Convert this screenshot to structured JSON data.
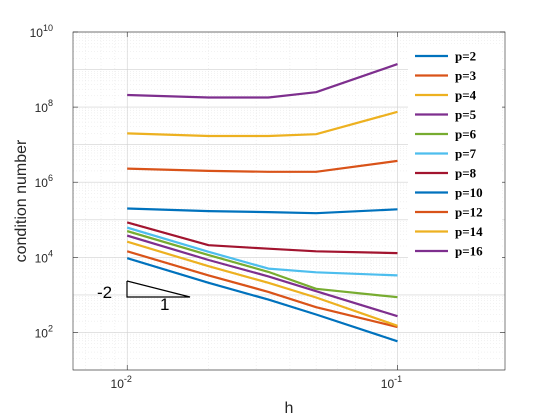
{
  "chart_data": {
    "type": "line",
    "xlabel": "h",
    "ylabel": "condition number",
    "xscale": "log",
    "yscale": "log",
    "xlim": [
      0.0063,
      0.25
    ],
    "ylim": [
      10,
      10000000000
    ],
    "grid": true,
    "legend_position": "top-right",
    "x_ticks": [
      {
        "value": 0.01,
        "base": "10",
        "exp": "-2"
      },
      {
        "value": 0.1,
        "base": "10",
        "exp": "-1"
      }
    ],
    "y_ticks": [
      {
        "value": 100,
        "base": "10",
        "exp": "2"
      },
      {
        "value": 10000,
        "base": "10",
        "exp": "4"
      },
      {
        "value": 1000000,
        "base": "10",
        "exp": "6"
      },
      {
        "value": 100000000,
        "base": "10",
        "exp": "8"
      },
      {
        "value": 10000000000,
        "base": "10",
        "exp": "10"
      }
    ],
    "x": [
      0.01,
      0.02,
      0.0333,
      0.05,
      0.1
    ],
    "series": [
      {
        "name": "p=2",
        "color": "#0072BD",
        "values": [
          9500,
          2100,
          750,
          300,
          58
        ]
      },
      {
        "name": "p=3",
        "color": "#D95319",
        "values": [
          14500,
          3300,
          1200,
          470,
          140
        ]
      },
      {
        "name": "p=4",
        "color": "#EDB120",
        "values": [
          26000,
          5800,
          2100,
          850,
          150
        ]
      },
      {
        "name": "p=5",
        "color": "#7E2F8E",
        "values": [
          38000,
          8500,
          3100,
          1250,
          270
        ]
      },
      {
        "name": "p=6",
        "color": "#77AC30",
        "values": [
          50000,
          11500,
          4100,
          1450,
          870
        ]
      },
      {
        "name": "p=7",
        "color": "#4DBEEE",
        "values": [
          62000,
          14000,
          5000,
          4000,
          3300
        ]
      },
      {
        "name": "p=8",
        "color": "#A2142F",
        "values": [
          85000,
          21000,
          17000,
          14500,
          13000
        ]
      },
      {
        "name": "p=10",
        "color": "#0072BD",
        "values": [
          200000,
          170000,
          160000,
          150000,
          190000
        ]
      },
      {
        "name": "p=12",
        "color": "#D95319",
        "values": [
          2300000,
          2000000,
          1900000,
          1900000,
          3700000
        ]
      },
      {
        "name": "p=14",
        "color": "#EDB120",
        "values": [
          20000000,
          17000000,
          17000000,
          19000000,
          75000000
        ]
      },
      {
        "name": "p=16",
        "color": "#7E2F8E",
        "values": [
          210000000,
          180000000,
          180000000,
          250000000,
          1400000000
        ]
      }
    ],
    "annotation": {
      "slope_label": "-2",
      "run_label": "1"
    }
  }
}
